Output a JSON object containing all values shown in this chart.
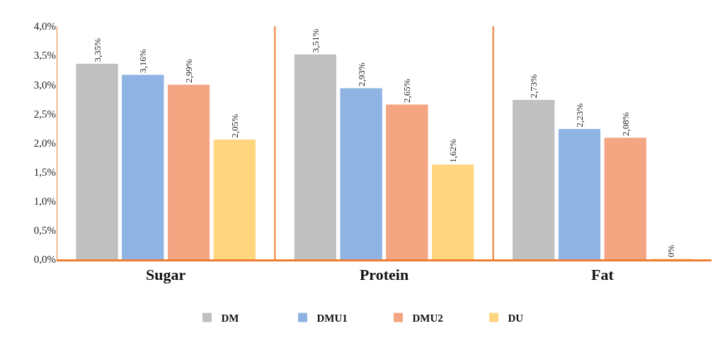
{
  "chart_data": {
    "type": "bar",
    "categories": [
      "Sugar",
      "Protein",
      "Fat"
    ],
    "series": [
      {
        "name": "DM",
        "color": "#c0c0c0",
        "values": [
          3.35,
          3.51,
          2.73
        ],
        "value_labels": [
          "3,35%",
          "3,51%",
          "2,73%"
        ]
      },
      {
        "name": "DMU1",
        "color": "#8fb4e3",
        "values": [
          3.16,
          2.93,
          2.23
        ],
        "value_labels": [
          "3,16%",
          "2,93%",
          "2,23%"
        ]
      },
      {
        "name": "DMU2",
        "color": "#f4a582",
        "values": [
          2.99,
          2.65,
          2.08
        ],
        "value_labels": [
          "2,99%",
          "2,65%",
          "2,08%"
        ]
      },
      {
        "name": "DU",
        "color": "#ffd680",
        "values": [
          2.05,
          1.62,
          0
        ],
        "value_labels": [
          "2,05%",
          "1,62%",
          "0%"
        ]
      }
    ],
    "ylim": [
      0,
      4
    ],
    "yticks": [
      {
        "value": 0,
        "label": "0,0%"
      },
      {
        "value": 0.5,
        "label": "0,5%"
      },
      {
        "value": 1,
        "label": "1,0%"
      },
      {
        "value": 1.5,
        "label": "1,5%"
      },
      {
        "value": 2,
        "label": "2,0%"
      },
      {
        "value": 2.5,
        "label": "2,5%"
      },
      {
        "value": 3,
        "label": "3,0%"
      },
      {
        "value": 3.5,
        "label": "3,5%"
      },
      {
        "value": 4,
        "label": "4,0%"
      }
    ],
    "grid": "x",
    "legend": "bottom"
  }
}
